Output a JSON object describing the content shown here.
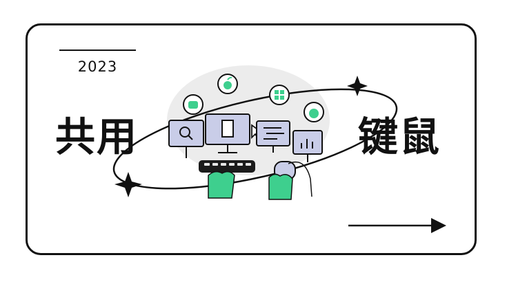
{
  "year": "2023",
  "title_left": "共用",
  "title_right": "键鼠",
  "icons": [
    "apple-icon",
    "android-icon",
    "windows-icon",
    "raspberry-pi-icon"
  ],
  "colors": {
    "ink": "#111111",
    "accent": "#3ecf8e",
    "screen": "#c9cde8",
    "backdrop": "#ececec"
  }
}
